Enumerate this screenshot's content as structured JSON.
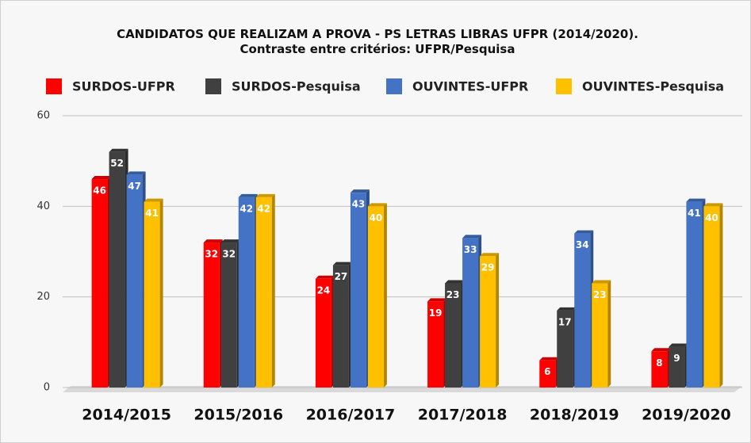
{
  "chart_data": {
    "type": "bar",
    "title": "CANDIDATOS QUE REALIZAM A PROVA - PS LETRAS LIBRAS UFPR (2014/2020). Contraste entre critérios: UFPR/Pesquisa",
    "categories": [
      "2014/2015",
      "2015/2016",
      "2016/2017",
      "2017/2018",
      "2018/2019",
      "2019/2020"
    ],
    "series": [
      {
        "name": "SURDOS-UFPR",
        "color": "#ff0000",
        "values": [
          46,
          32,
          24,
          19,
          6,
          8
        ]
      },
      {
        "name": "SURDOS-Pesquisa",
        "color": "#404040",
        "values": [
          52,
          32,
          27,
          23,
          17,
          9
        ]
      },
      {
        "name": "OUVINTES-UFPR",
        "color": "#4472c4",
        "values": [
          47,
          42,
          43,
          33,
          34,
          41
        ]
      },
      {
        "name": "OUVINTES-Pesquisa",
        "color": "#ffc000",
        "values": [
          41,
          42,
          40,
          29,
          23,
          40
        ]
      }
    ],
    "ylim": [
      0,
      60
    ],
    "yticks": [
      0,
      20,
      40,
      60
    ],
    "grid": true
  }
}
